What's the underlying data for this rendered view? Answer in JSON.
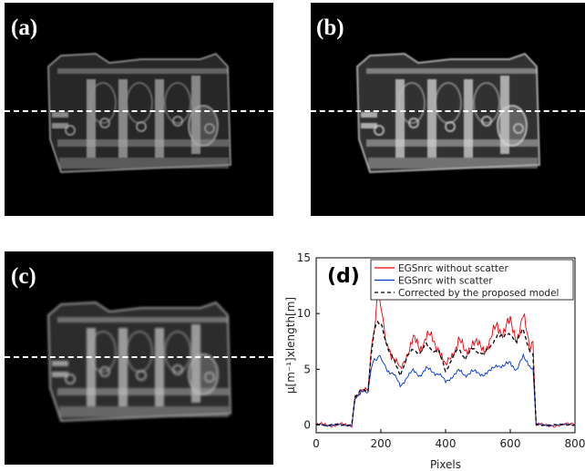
{
  "panels": [
    {
      "label": "(a)",
      "brightness": 0.75
    },
    {
      "label": "(b)",
      "brightness": 0.95
    },
    {
      "label": "(c)",
      "brightness": 0.85
    }
  ],
  "chart_data": {
    "type": "line",
    "panel_label": "(d)",
    "xlabel": "Pixels",
    "ylabel": "μ[m⁻¹]xlength[m]",
    "xlim": [
      0,
      800
    ],
    "ylim": [
      -0.7,
      15
    ],
    "xticks": [
      0,
      200,
      400,
      600,
      800
    ],
    "yticks": [
      0,
      5,
      10,
      15
    ],
    "legend_position": "top-right",
    "series": [
      {
        "name": "EGSnrc without scatter",
        "color": "#e8000b",
        "style": "solid",
        "x": [
          0,
          110,
          120,
          140,
          160,
          170,
          180,
          190,
          200,
          210,
          220,
          240,
          260,
          280,
          300,
          320,
          340,
          360,
          380,
          400,
          420,
          440,
          460,
          480,
          500,
          520,
          540,
          560,
          580,
          600,
          620,
          640,
          660,
          670,
          680,
          700,
          750,
          800
        ],
        "y": [
          0,
          0,
          2.5,
          3.2,
          3.0,
          6.5,
          9.5,
          11.5,
          10.5,
          9.0,
          7.5,
          6.0,
          4.8,
          6.5,
          7.5,
          7.0,
          8.0,
          7.5,
          7.0,
          5.0,
          6.5,
          7.5,
          6.5,
          7.5,
          7.0,
          7.0,
          7.5,
          9.0,
          8.5,
          9.0,
          8.0,
          9.5,
          7.0,
          6.8,
          0,
          0,
          0,
          0
        ]
      },
      {
        "name": "EGSnrc with scatter",
        "color": "#0033cc",
        "style": "solid",
        "x": [
          0,
          110,
          120,
          140,
          160,
          170,
          180,
          190,
          200,
          210,
          220,
          240,
          260,
          280,
          300,
          320,
          340,
          360,
          380,
          400,
          420,
          440,
          460,
          480,
          500,
          520,
          540,
          560,
          580,
          600,
          620,
          640,
          660,
          670,
          680,
          700,
          750,
          800
        ],
        "y": [
          0,
          0,
          2.4,
          3.0,
          2.8,
          5.0,
          6.0,
          6.2,
          5.8,
          5.5,
          5.0,
          4.5,
          3.5,
          4.3,
          4.8,
          4.5,
          5.0,
          4.8,
          4.6,
          3.8,
          4.4,
          4.8,
          4.5,
          4.8,
          4.6,
          4.6,
          4.8,
          5.5,
          5.2,
          5.6,
          5.0,
          6.0,
          5.5,
          5.0,
          0,
          0,
          0,
          0
        ]
      },
      {
        "name": "Corrected by the proposed model",
        "color": "#000000",
        "style": "dashed",
        "x": [
          0,
          110,
          120,
          140,
          160,
          170,
          180,
          190,
          200,
          210,
          220,
          240,
          260,
          280,
          300,
          320,
          340,
          360,
          380,
          400,
          420,
          440,
          460,
          480,
          500,
          520,
          540,
          560,
          580,
          600,
          620,
          640,
          660,
          670,
          680,
          700,
          750,
          800
        ],
        "y": [
          0,
          0,
          2.5,
          3.2,
          3.0,
          6.2,
          8.5,
          9.5,
          9.0,
          8.0,
          7.0,
          5.8,
          4.5,
          6.0,
          6.8,
          6.5,
          7.2,
          6.8,
          6.5,
          4.8,
          6.0,
          6.8,
          6.0,
          6.8,
          6.5,
          6.5,
          7.0,
          8.2,
          7.8,
          8.3,
          7.4,
          8.6,
          6.7,
          6.5,
          0,
          0,
          0,
          0
        ]
      }
    ]
  }
}
